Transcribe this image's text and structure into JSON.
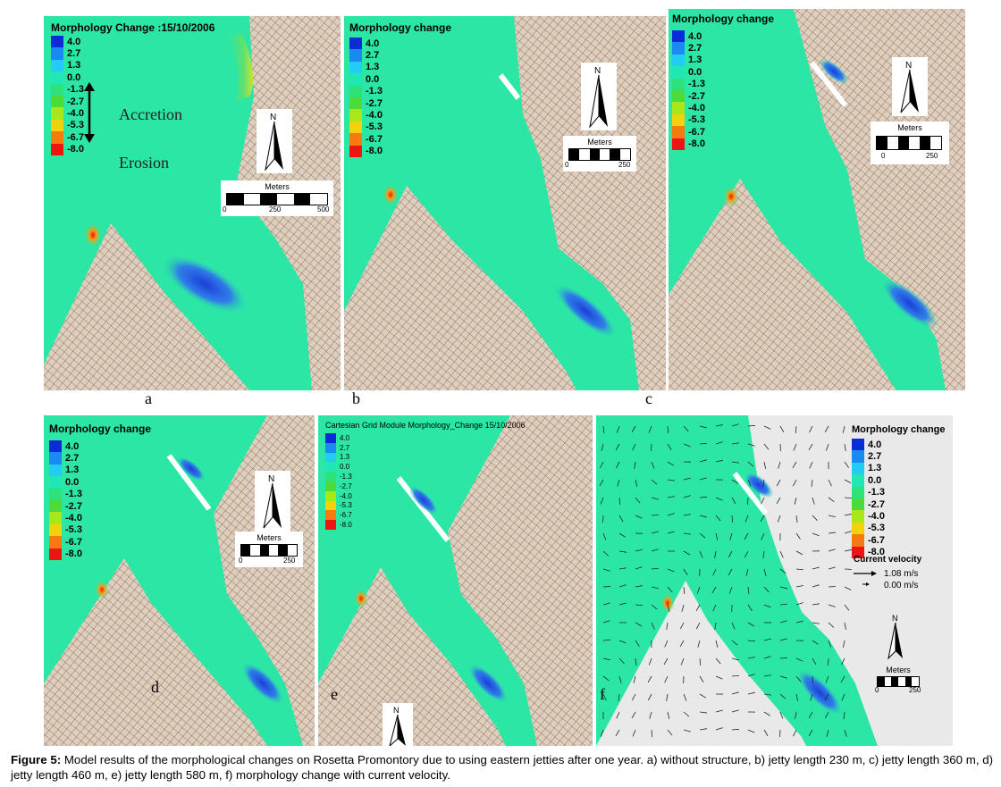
{
  "legend_values": [
    "4.0",
    "2.7",
    "1.3",
    "0.0",
    "-1.3",
    "-2.7",
    "-4.0",
    "-5.3",
    "-6.7",
    "-8.0"
  ],
  "legend_colors": [
    "#0a2bd6",
    "#1a8af0",
    "#22ccf5",
    "#1fe8b5",
    "#2de27a",
    "#4cdc3a",
    "#a8e81a",
    "#f2d20c",
    "#f57a10",
    "#ef1414"
  ],
  "colors": {
    "water": "#2ce6a6",
    "land": "#dccfbf",
    "grid": "#8e5a3c",
    "deep": "#2b5fe0",
    "accent": "#e8e12a"
  },
  "panels": {
    "a": {
      "title": "Morphology Change :15/10/2006",
      "label": "a",
      "annot_up": "Accretion",
      "annot_down": "Erosion",
      "scale_title": "Meters",
      "scale_ticks": [
        "0",
        "250",
        "500"
      ],
      "north": "N"
    },
    "b": {
      "title": "Morphology change",
      "label": "b",
      "scale_title": "Meters",
      "scale_ticks": [
        "0",
        "250"
      ],
      "north": "N"
    },
    "c": {
      "title": "Morphology change",
      "label": "c",
      "scale_title": "Meters",
      "scale_ticks": [
        "0",
        "250"
      ],
      "north": "N"
    },
    "d": {
      "title": "Morphology change",
      "label": "d",
      "scale_title": "Meters",
      "scale_ticks": [
        "0",
        "250"
      ],
      "north": "N"
    },
    "e": {
      "title": "Cartesian Grid Module Morphology_Change 15/10/2006",
      "label": "e",
      "north": "N"
    },
    "f": {
      "title": "Morphology change",
      "label": "f",
      "vel_title": "Current velocity",
      "vel_1": "1.08 m/s",
      "vel_2": "0.00 m/s",
      "scale_title": "Meters",
      "scale_ticks": [
        "0",
        "250"
      ],
      "north": "N"
    }
  },
  "caption": {
    "label": "Figure 5:",
    "text": " Model results of the morphological changes on Rosetta Promontory due to using eastern jetties after one year. a) without structure, b) jetty length 230 m, c) jetty length 360 m, d) jetty length 460 m, e) jetty length 580 m, f) morphology change with current velocity."
  }
}
